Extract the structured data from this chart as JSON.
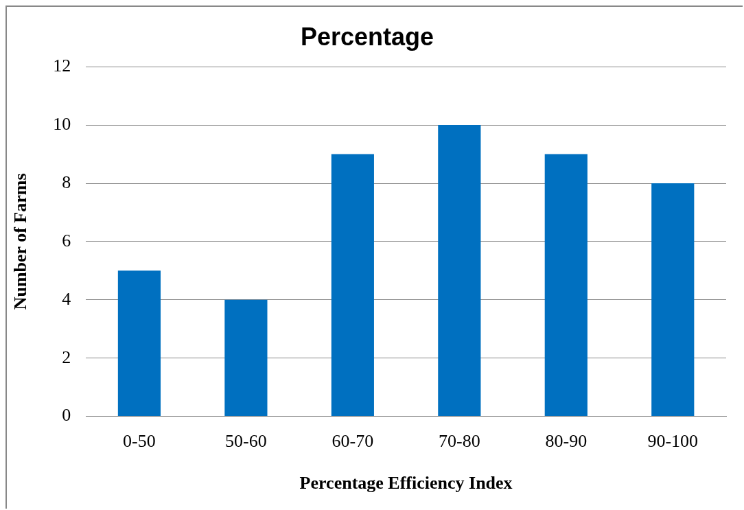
{
  "chart_data": {
    "type": "bar",
    "title": "Percentage",
    "xlabel": "Percentage Efficiency Index",
    "ylabel": "Number of Farms",
    "categories": [
      "0-50",
      "50-60",
      "60-70",
      "70-80",
      "80-90",
      "90-100"
    ],
    "values": [
      5,
      4,
      9,
      10,
      9,
      8
    ],
    "color": "#0070c0",
    "ylim": [
      0,
      12
    ],
    "yticks": [
      0,
      2,
      4,
      6,
      8,
      10,
      12
    ],
    "grid": "y",
    "legend": false
  }
}
